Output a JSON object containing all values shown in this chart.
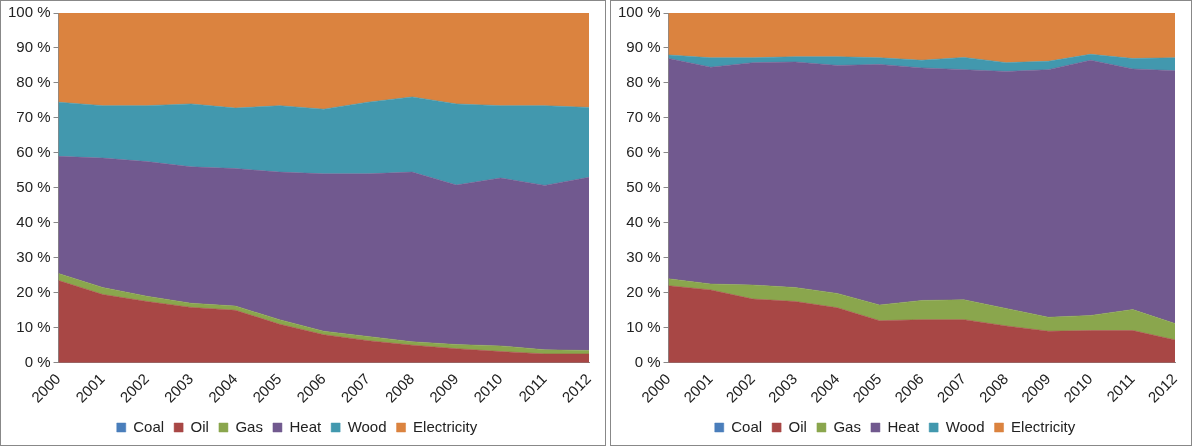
{
  "chart_data": [
    {
      "type": "area",
      "stacked": true,
      "categories": [
        "2000",
        "2001",
        "2002",
        "2003",
        "2004",
        "2005",
        "2006",
        "2007",
        "2008",
        "2009",
        "2010",
        "2011",
        "2012"
      ],
      "ylim": [
        0,
        100
      ],
      "yticks": [
        {
          "value": 0,
          "label": "0 %"
        },
        {
          "value": 10,
          "label": "10 %"
        },
        {
          "value": 20,
          "label": "20 %"
        },
        {
          "value": 30,
          "label": "30 %"
        },
        {
          "value": 40,
          "label": "40 %"
        },
        {
          "value": 50,
          "label": "50 %"
        },
        {
          "value": 60,
          "label": "60 %"
        },
        {
          "value": 70,
          "label": "70 %"
        },
        {
          "value": 80,
          "label": "80 %"
        },
        {
          "value": 90,
          "label": "90 %"
        },
        {
          "value": 100,
          "label": "100 %"
        }
      ],
      "grid": false,
      "legend": "bottom",
      "series": [
        {
          "name": "Coal",
          "color": "#4a7ebb",
          "values": [
            null,
            null,
            null,
            null,
            null,
            null,
            null,
            null,
            null,
            null,
            null,
            null,
            null
          ]
        },
        {
          "name": "Oil",
          "color": "#a84745",
          "values": [
            23.5,
            19.5,
            17.5,
            15.8,
            15,
            11,
            8,
            6.3,
            5,
            4,
            3.2,
            2.5,
            2.5
          ]
        },
        {
          "name": "Gas",
          "color": "#8aa64d",
          "values": [
            2,
            2,
            1.5,
            1.2,
            1.2,
            1.3,
            1,
            1.2,
            1,
            1.2,
            1.6,
            1.2,
            1
          ]
        },
        {
          "name": "Heat",
          "color": "#71598f",
          "values": [
            33.5,
            37,
            38.5,
            39,
            39.3,
            42.2,
            45,
            46.5,
            48.5,
            45.6,
            48,
            47,
            49.5
          ]
        },
        {
          "name": "Wood",
          "color": "#4298ae",
          "values": [
            15.5,
            15,
            16,
            18,
            17.3,
            19,
            18.5,
            20.5,
            21.5,
            23.2,
            20.7,
            22.8,
            20
          ]
        },
        {
          "name": "Electricity",
          "color": "#db833f",
          "values": [
            25.5,
            26.5,
            26.5,
            26,
            27.2,
            26.5,
            27.5,
            25.5,
            24,
            26,
            26.5,
            26.5,
            27
          ]
        }
      ]
    },
    {
      "type": "area",
      "stacked": true,
      "categories": [
        "2000",
        "2001",
        "2002",
        "2003",
        "2004",
        "2005",
        "2006",
        "2007",
        "2008",
        "2009",
        "2010",
        "2011",
        "2012"
      ],
      "ylim": [
        0,
        100
      ],
      "yticks": [
        {
          "value": 0,
          "label": "0 %"
        },
        {
          "value": 10,
          "label": "10 %"
        },
        {
          "value": 20,
          "label": "20 %"
        },
        {
          "value": 30,
          "label": "30 %"
        },
        {
          "value": 40,
          "label": "40 %"
        },
        {
          "value": 50,
          "label": "50 %"
        },
        {
          "value": 60,
          "label": "60 %"
        },
        {
          "value": 70,
          "label": "70 %"
        },
        {
          "value": 80,
          "label": "80 %"
        },
        {
          "value": 90,
          "label": "90 %"
        },
        {
          "value": 100,
          "label": "100 %"
        }
      ],
      "grid": false,
      "legend": "bottom",
      "series": [
        {
          "name": "Coal",
          "color": "#4a7ebb",
          "values": [
            null,
            null,
            null,
            null,
            null,
            null,
            null,
            null,
            null,
            null,
            null,
            null,
            null
          ]
        },
        {
          "name": "Oil",
          "color": "#a84745",
          "values": [
            22,
            20.8,
            18.2,
            17.5,
            15.7,
            12,
            12.3,
            12.3,
            10.5,
            9,
            9.2,
            9.2,
            6.5
          ]
        },
        {
          "name": "Gas",
          "color": "#8aa64d",
          "values": [
            2,
            1.7,
            4,
            4,
            4.1,
            4.5,
            5.5,
            5.7,
            5,
            4,
            4.3,
            6,
            4.7
          ]
        },
        {
          "name": "Heat",
          "color": "#71598f",
          "values": [
            63,
            62,
            63.6,
            64.5,
            65.2,
            68.8,
            66.5,
            65.8,
            67.8,
            70.8,
            73,
            68.8,
            72.3
          ]
        },
        {
          "name": "Wood",
          "color": "#4298ae",
          "values": [
            1,
            2.7,
            1.4,
            1.5,
            2.5,
            1.9,
            2.2,
            3.5,
            2.5,
            2.4,
            1.7,
            3,
            3.7
          ]
        },
        {
          "name": "Electricity",
          "color": "#db833f",
          "values": [
            12,
            12.8,
            12.8,
            12.5,
            12.5,
            12.8,
            13.5,
            12.7,
            14.2,
            13.8,
            11.8,
            13,
            12.8
          ]
        }
      ]
    }
  ]
}
